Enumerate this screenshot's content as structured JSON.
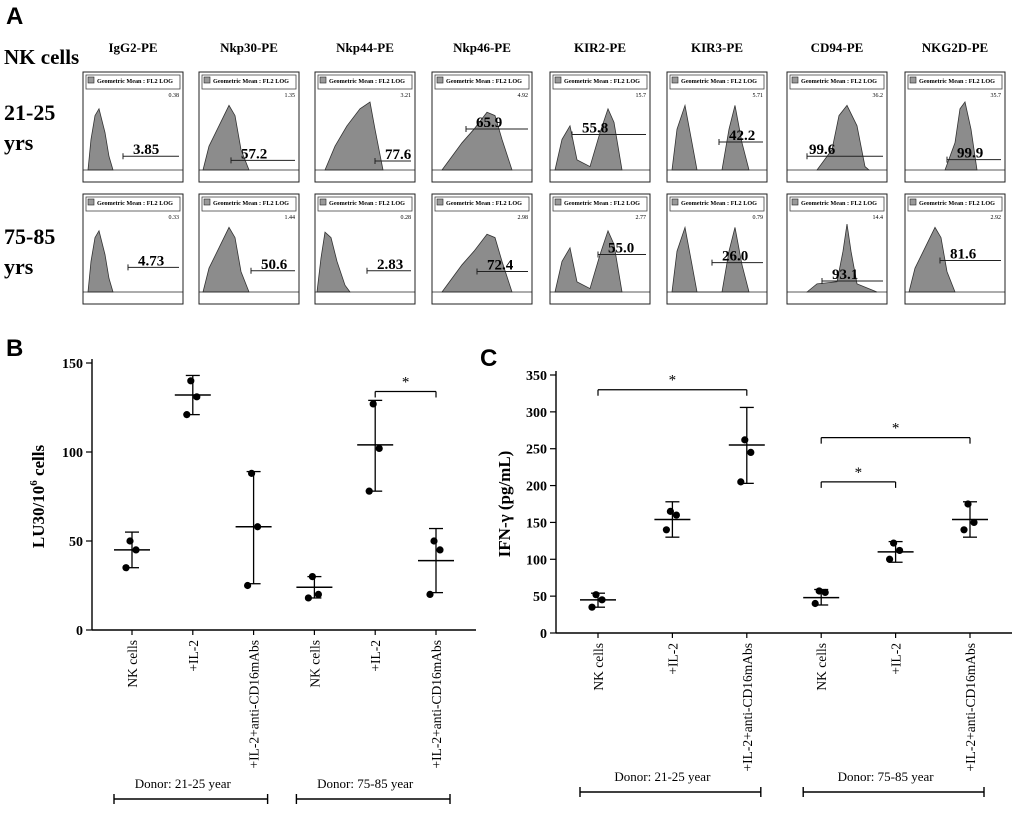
{
  "figure": {
    "panel_a_letter": "A",
    "panel_b_letter": "B",
    "panel_c_letter": "C"
  },
  "panel_a": {
    "row_header": "NK cells",
    "marker_label_color": "#000000",
    "histogram_fill": "#8c8c8c",
    "box_header": "Geometric Mean : FL2 LOG",
    "columns": [
      "IgG2-PE",
      "Nkp30-PE",
      "Nkp44-PE",
      "Nkp46-PE",
      "KIR2-PE",
      "KIR3-PE",
      "CD94-PE",
      "NKG2D-PE"
    ],
    "rows": [
      {
        "label_line1": "21-25",
        "label_line2": "yrs",
        "gm_values": [
          "0.38",
          "1.35",
          "3.21",
          "4.92",
          "15.7",
          "5.71",
          "36.2",
          "35.7"
        ],
        "percent": [
          "3.85",
          "57.2",
          "77.6",
          "65.9",
          "55.8",
          "42.2",
          "99.6",
          "99.9"
        ]
      },
      {
        "label_line1": "75-85",
        "label_line2": "yrs",
        "gm_values": [
          "0.33",
          "1.44",
          "0.28",
          "2.98",
          "2.77",
          "0.79",
          "14.4",
          "2.92"
        ],
        "percent": [
          "4.73",
          "50.6",
          "2.83",
          "72.4",
          "55.0",
          "26.0",
          "93.1",
          "81.6"
        ]
      }
    ]
  },
  "chart_data": [
    {
      "type": "scatter",
      "panel": "B",
      "title": "",
      "ylabel": "LU30/10",
      "ylabel_sup": "6",
      "ylabel_tail": " cells",
      "ylim": [
        0,
        150
      ],
      "yticks": [
        0,
        50,
        100,
        150
      ],
      "categories": [
        "NK cells",
        "+IL-2",
        "+IL-2+anti-CD16mAbs",
        "NK cells",
        "+IL-2",
        "+IL-2+anti-CD16mAbs"
      ],
      "points": [
        [
          35,
          45,
          50
        ],
        [
          121,
          131,
          140
        ],
        [
          25,
          58,
          88
        ],
        [
          18,
          20,
          30
        ],
        [
          78,
          102,
          127
        ],
        [
          20,
          45,
          50
        ]
      ],
      "mean": [
        45,
        132,
        58,
        24,
        104,
        39
      ],
      "sd_low": [
        35,
        121,
        26,
        18,
        78,
        21
      ],
      "sd_high": [
        55,
        143,
        89,
        30,
        129,
        57
      ],
      "groups": [
        {
          "label": "Donor: 21-25 year",
          "from": 0,
          "to": 2
        },
        {
          "label": "Donor:  75-85 year",
          "from": 3,
          "to": 5
        }
      ],
      "significance": [
        {
          "from": 4,
          "to": 5,
          "y": 134,
          "label": "*"
        }
      ]
    },
    {
      "type": "scatter",
      "panel": "C",
      "title": "",
      "ylabel": "IFN-γ (pg/mL)",
      "ylim": [
        0,
        350
      ],
      "yticks": [
        0,
        50,
        100,
        150,
        200,
        250,
        300,
        350
      ],
      "categories": [
        "NK cells",
        "+IL-2",
        "+IL-2+anti-CD16mAbs",
        "NK cells",
        "+IL-2",
        "+IL-2+anti-CD16mAbs"
      ],
      "points": [
        [
          35,
          45,
          52
        ],
        [
          140,
          160,
          165
        ],
        [
          205,
          245,
          262
        ],
        [
          40,
          55,
          57
        ],
        [
          100,
          112,
          122
        ],
        [
          140,
          150,
          175
        ]
      ],
      "mean": [
        45,
        154,
        255,
        48,
        110,
        154
      ],
      "sd_low": [
        35,
        130,
        203,
        38,
        96,
        130
      ],
      "sd_high": [
        54,
        178,
        306,
        59,
        124,
        178
      ],
      "groups": [
        {
          "label": "Donor: 21-25 year",
          "from": 0,
          "to": 2
        },
        {
          "label": "Donor:  75-85 year",
          "from": 3,
          "to": 5
        }
      ],
      "significance": [
        {
          "from": 0,
          "to": 2,
          "y": 330,
          "label": "*"
        },
        {
          "from": 3,
          "to": 5,
          "y": 265,
          "label": "*"
        },
        {
          "from": 3,
          "to": 4,
          "y": 205,
          "label": "*"
        }
      ]
    }
  ]
}
